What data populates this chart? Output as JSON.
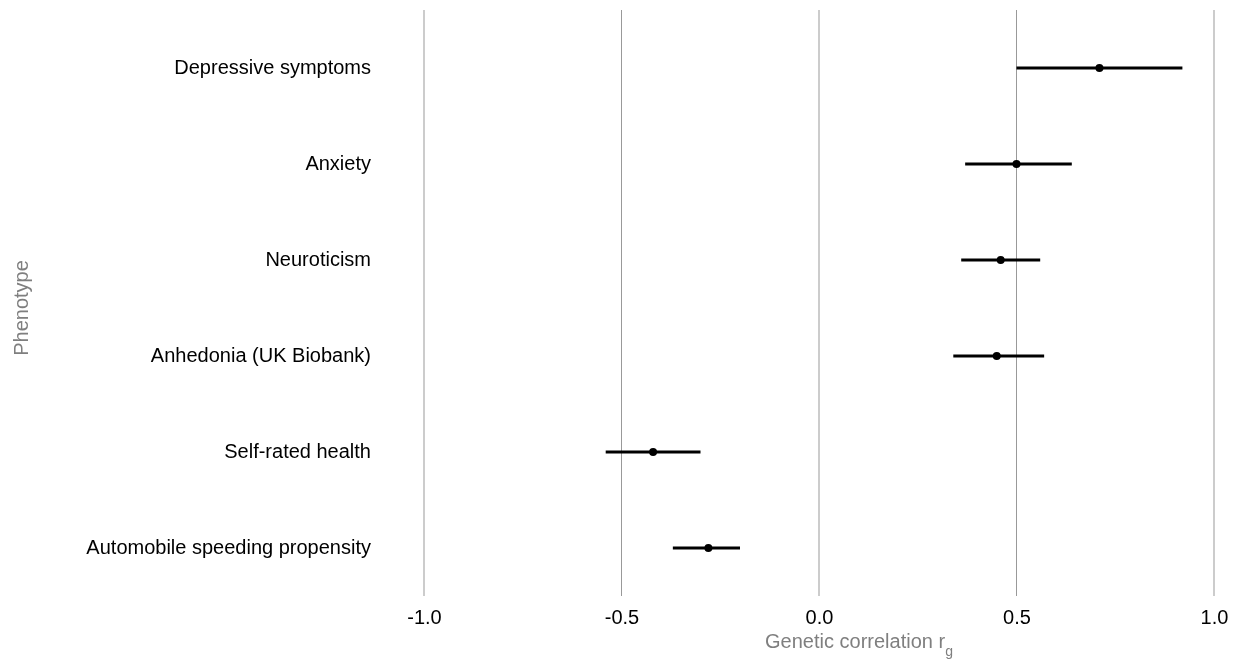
{
  "chart_data": {
    "type": "scatter",
    "orientation": "horizontal",
    "xlabel": "Genetic correlation r$_{g}$",
    "ylabel": "Phenotype",
    "categories": [
      "Depressive symptoms",
      "Anxiety",
      "Neuroticism",
      "Anhedonia (UK Biobank)",
      "Self-rated health",
      "Automobile speeding propensity"
    ],
    "values": [
      0.71,
      0.5,
      0.46,
      0.45,
      -0.42,
      -0.28
    ],
    "errors": [
      [
        0.5,
        0.92
      ],
      [
        0.37,
        0.64
      ],
      [
        0.36,
        0.56
      ],
      [
        0.34,
        0.57
      ],
      [
        -0.54,
        -0.3
      ],
      [
        -0.37,
        -0.2
      ]
    ],
    "color": "#000000",
    "marker": "circle",
    "xlim": [
      -1,
      1
    ],
    "xticks": [
      {
        "value": -1,
        "label": "-1.0"
      },
      -0.5,
      {
        "value": 0,
        "label": "0.0"
      },
      0.5,
      {
        "value": 1,
        "label": "1.0"
      }
    ],
    "grid": "x"
  }
}
